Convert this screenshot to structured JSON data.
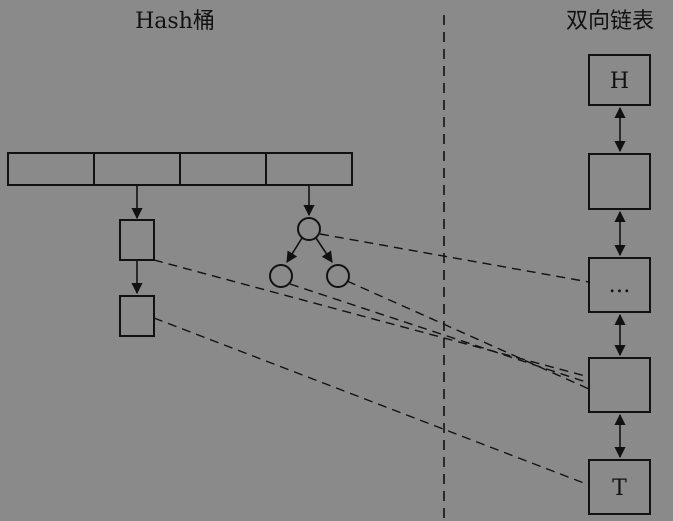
{
  "diagram": {
    "left_title": "Hash桶",
    "right_title": "双向链表",
    "list_nodes": {
      "head": "H",
      "node2": "",
      "node3": "…",
      "node4": "",
      "tail": "T"
    }
  },
  "colors": {
    "background": "#8a8a8a",
    "stroke": "#111111"
  }
}
